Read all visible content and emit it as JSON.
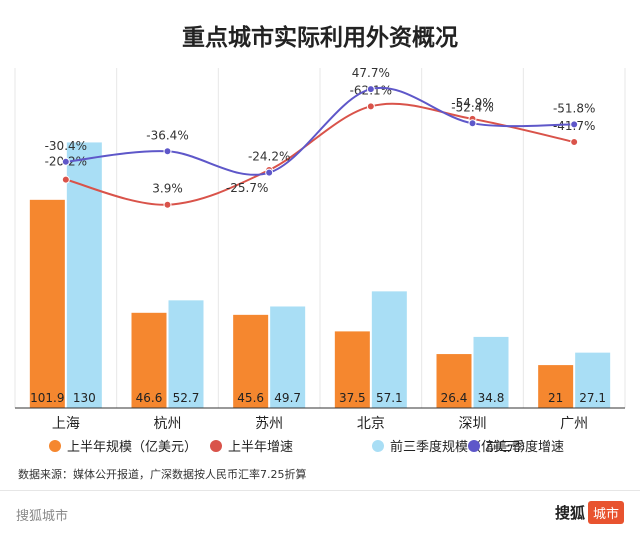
{
  "chart_data": {
    "type": "bar",
    "title": "重点城市实际利用外资概况",
    "categories": [
      "上海",
      "杭州",
      "苏州",
      "北京",
      "深圳",
      "广州"
    ],
    "series": [
      {
        "name": "上半年规模（亿美元）",
        "type": "bar",
        "values": [
          101.9,
          46.6,
          45.6,
          37.5,
          26.4,
          21
        ],
        "color": "#f5872f"
      },
      {
        "name": "前三季度规模（亿美元）",
        "type": "bar",
        "values": [
          130,
          52.7,
          49.7,
          57.1,
          34.8,
          27.1
        ],
        "color": "#a9def5"
      },
      {
        "name": "上半年增速",
        "type": "line",
        "values": [
          -20.2,
          3.9,
          -25.7,
          -62.1,
          -54.9,
          -41.7
        ],
        "labels": [
          "-20.2%",
          "3.9%",
          "-25.7%",
          "-62.1%",
          "-54.9%",
          "-41.7%"
        ],
        "color": "#d9534a"
      },
      {
        "name": "前三季度增速",
        "type": "line",
        "values": [
          -30.4,
          -36.4,
          -24.2,
          47.7,
          -52.4,
          -51.8
        ],
        "labels": [
          "-30.4%",
          "-36.4%",
          "-24.2%",
          "47.7%",
          "-52.4%",
          "-51.8%"
        ],
        "color": "#5e57c9"
      }
    ],
    "bar_ylim": [
      0,
      140
    ],
    "grid": "vertical"
  },
  "note": "数据来源：媒体公开报道，广深数据按人民币汇率7.25折算",
  "footer": {
    "left": "搜狐城市",
    "brand_text": "搜狐",
    "brand_badge": "城市"
  }
}
